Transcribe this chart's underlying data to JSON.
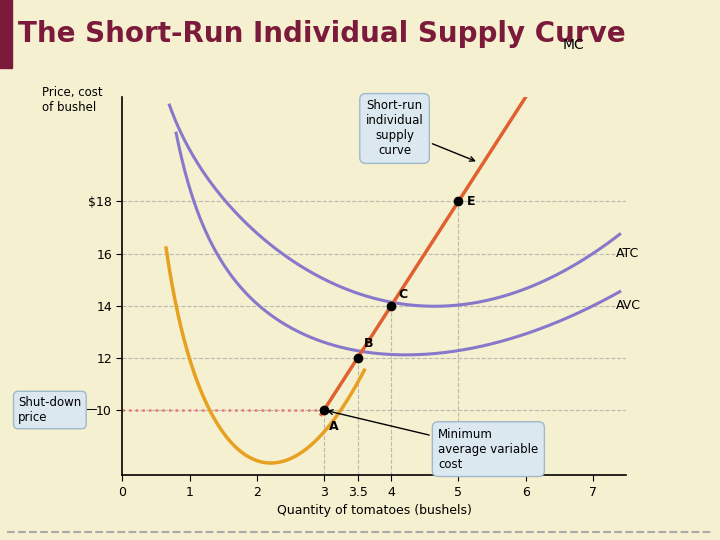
{
  "title": "The Short-Run Individual Supply Curve",
  "title_color": "#7B1A3B",
  "bg_color": "#F5F0D0",
  "header_bar_color": "#7B1A3B",
  "ylabel": "Price, cost\nof bushel",
  "xlabel": "Quantity of tomatoes (bushels)",
  "xlim": [
    0,
    7.5
  ],
  "ylim": [
    7.5,
    22
  ],
  "yticks": [
    10,
    12,
    14,
    16,
    18
  ],
  "ytick_labels": [
    "10",
    "12",
    "14",
    "16",
    "$18"
  ],
  "xticks": [
    0,
    1,
    2,
    3,
    3.5,
    4,
    5,
    6,
    7
  ],
  "xtick_labels": [
    "0",
    "1",
    "2",
    "3",
    "3.5",
    "4",
    "5",
    "6",
    "7"
  ],
  "shutdown_price": 10,
  "points": {
    "A": [
      3.0,
      10.0
    ],
    "B": [
      3.5,
      12.0
    ],
    "C": [
      4.0,
      14.0
    ],
    "E": [
      5.0,
      18.0
    ]
  },
  "mc_color": "#E06030",
  "atc_color": "#8878CC",
  "avc_color": "#8878CC",
  "orange_color": "#E8A020",
  "shutdown_line_color": "#E87878",
  "grid_color": "#AAAAAA",
  "ann_box_color": "#DCE8F0",
  "ann_box_edge": "#A0B8CC"
}
